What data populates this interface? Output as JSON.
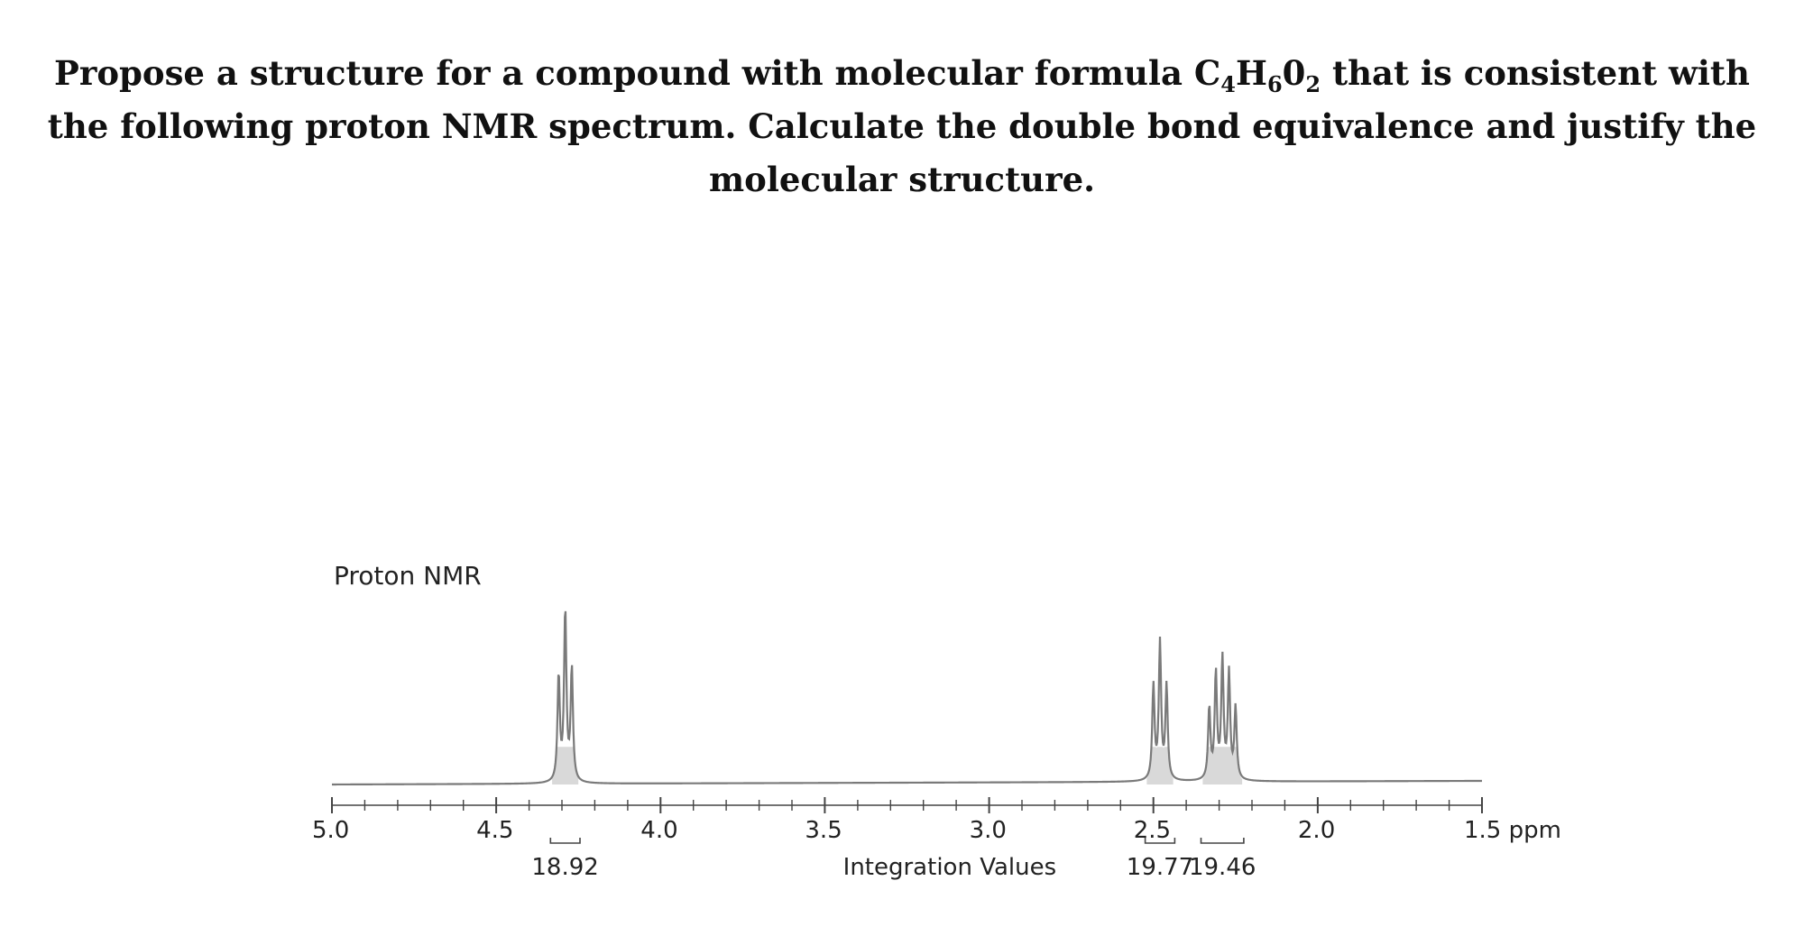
{
  "question": {
    "part1": "Propose a structure for a compound with molecular formula C",
    "sub1": "4",
    "part2": "H",
    "sub2": "6",
    "part3": "0",
    "sub3": "2",
    "part4": " that is consistent with the following proton NMR spectrum. Calculate the double bond equivalence and justify the molecular structure."
  },
  "chart_data": {
    "type": "line",
    "title": "Proton NMR",
    "xlim": [
      5.0,
      1.5
    ],
    "x_ticks": [
      {
        "value": 5.0,
        "label": "5.0"
      },
      {
        "value": 4.5,
        "label": "4.5"
      },
      {
        "value": 4.0,
        "label": "4.0"
      },
      {
        "value": 3.5,
        "label": "3.5"
      },
      {
        "value": 3.0,
        "label": "3.0"
      },
      {
        "value": 2.5,
        "label": "2.5"
      },
      {
        "value": 2.0,
        "label": "2.0"
      },
      {
        "value": 1.5,
        "label": "1.5 ppm"
      }
    ],
    "integration_caption": "Integration Values",
    "signals": [
      {
        "shift": 4.29,
        "multiplicity": "triplet",
        "lines": [
          4.31,
          4.29,
          4.27
        ],
        "heights": [
          0.62,
          1.0,
          0.66
        ],
        "integration": "18.92"
      },
      {
        "shift": 2.48,
        "multiplicity": "triplet",
        "lines": [
          2.5,
          2.48,
          2.46
        ],
        "heights": [
          0.55,
          0.8,
          0.55
        ],
        "integration": "19.77"
      },
      {
        "shift": 2.28,
        "multiplicity": "quintet",
        "lines": [
          2.33,
          2.31,
          2.29,
          2.27,
          2.25
        ],
        "heights": [
          0.42,
          0.62,
          0.7,
          0.62,
          0.42
        ],
        "integration": "19.46"
      }
    ]
  }
}
